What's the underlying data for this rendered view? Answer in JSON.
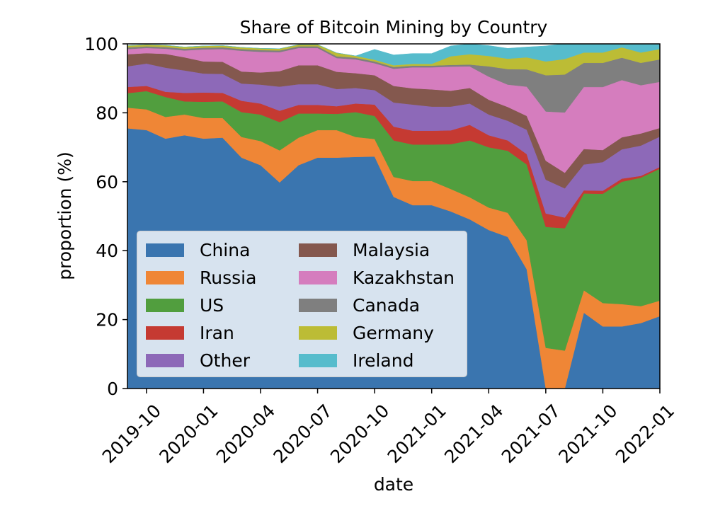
{
  "chart_data": {
    "type": "area",
    "stacked": true,
    "title": "Share of Bitcoin Mining by Country",
    "xlabel": "date",
    "ylabel": "proportion (%)",
    "ylim": [
      0,
      100
    ],
    "yticks": [
      0,
      20,
      40,
      60,
      80,
      100
    ],
    "xlim": [
      "2019-09",
      "2022-01"
    ],
    "xticks": [
      "2019-10",
      "2020-01",
      "2020-04",
      "2020-07",
      "2020-10",
      "2021-01",
      "2021-04",
      "2021-07",
      "2021-10",
      "2022-01"
    ],
    "grid": false,
    "legend_position": "lower-left",
    "legend_columns": 2,
    "x": [
      "2019-09",
      "2019-10",
      "2019-11",
      "2019-12",
      "2020-01",
      "2020-02",
      "2020-03",
      "2020-04",
      "2020-05",
      "2020-06",
      "2020-07",
      "2020-08",
      "2020-09",
      "2020-10",
      "2020-11",
      "2020-12",
      "2021-01",
      "2021-02",
      "2021-03",
      "2021-04",
      "2021-05",
      "2021-06",
      "2021-07",
      "2021-08",
      "2021-09",
      "2021-10",
      "2021-11",
      "2021-12",
      "2022-01"
    ],
    "series": [
      {
        "name": "China",
        "color": "#3a75af",
        "values": [
          75.5,
          75.0,
          72.5,
          73.5,
          72.5,
          72.8,
          67.0,
          64.8,
          59.8,
          64.8,
          67.0,
          67.0,
          67.2,
          67.3,
          55.6,
          53.2,
          53.2,
          51.4,
          49.1,
          46.0,
          44.0,
          34.6,
          0,
          0,
          22.0,
          18.0,
          18.0,
          19.0,
          21.0
        ]
      },
      {
        "name": "Russia",
        "color": "#ef8636",
        "values": [
          6.0,
          6.0,
          6.3,
          6.0,
          6.0,
          5.7,
          6.0,
          7.0,
          9.3,
          8.0,
          8.0,
          8.0,
          5.8,
          5.1,
          5.8,
          7.0,
          7.0,
          6.5,
          6.4,
          6.5,
          7.0,
          8.4,
          11.8,
          11.0,
          6.5,
          6.8,
          6.5,
          4.9,
          4.5
        ]
      },
      {
        "name": "US",
        "color": "#519e3e",
        "values": [
          4.2,
          5.3,
          5.8,
          3.8,
          4.7,
          4.8,
          7.2,
          7.7,
          8.2,
          7.0,
          4.8,
          4.7,
          7.2,
          6.7,
          10.6,
          10.6,
          10.6,
          13.0,
          16.5,
          17.5,
          18.0,
          22.0,
          35.1,
          35.5,
          28.1,
          31.7,
          35.5,
          37.3,
          38.3
        ]
      },
      {
        "name": "Iran",
        "color": "#c53a32",
        "values": [
          1.8,
          1.5,
          1.5,
          2.5,
          2.7,
          2.5,
          3.3,
          3.2,
          3.3,
          2.5,
          2.5,
          2.2,
          2.5,
          3.3,
          4.0,
          4.0,
          4.0,
          4.0,
          4.5,
          3.5,
          3.0,
          3.0,
          3.9,
          3.1,
          0.9,
          0.9,
          0.9,
          0.5,
          0.5
        ]
      },
      {
        "name": "Other",
        "color": "#8d69b8",
        "values": [
          6.0,
          6.5,
          7.0,
          6.5,
          5.5,
          5.5,
          5.0,
          5.5,
          7.0,
          6.0,
          6.0,
          5.0,
          4.5,
          4.2,
          7.0,
          7.6,
          7.0,
          6.9,
          6.2,
          6.0,
          5.7,
          7.1,
          9.8,
          8.5,
          7.5,
          8.3,
          8.5,
          8.8,
          8.8
        ]
      },
      {
        "name": "Malaysia",
        "color": "#84584e",
        "values": [
          3.5,
          3.0,
          4.0,
          3.8,
          3.5,
          3.5,
          3.5,
          3.5,
          4.5,
          5.5,
          5.5,
          5.0,
          4.3,
          4.3,
          4.8,
          4.7,
          5.0,
          4.6,
          4.5,
          4.3,
          4.0,
          4.0,
          5.5,
          4.5,
          4.5,
          3.5,
          3.5,
          3.5,
          2.5
        ]
      },
      {
        "name": "Kazakhstan",
        "color": "#d57dbe",
        "values": [
          1.5,
          1.5,
          1.5,
          2.0,
          3.5,
          3.7,
          6.0,
          6.0,
          5.5,
          5.0,
          5.0,
          4.0,
          4.0,
          3.5,
          5.0,
          6.1,
          6.4,
          7.0,
          6.3,
          6.7,
          6.5,
          8.5,
          14.3,
          17.5,
          18.0,
          18.3,
          16.6,
          14.0,
          13.4
        ]
      },
      {
        "name": "Canada",
        "color": "#7f7f7f",
        "values": [
          0.5,
          0.5,
          0.5,
          0.5,
          0.5,
          0.5,
          0.5,
          0.5,
          0.5,
          0.5,
          0.5,
          0.5,
          0.5,
          0.5,
          0.5,
          0.5,
          0.5,
          0.5,
          0.5,
          3.0,
          4.5,
          5.0,
          10.5,
          11.0,
          7.0,
          7.0,
          6.5,
          6.5,
          6.5
        ]
      },
      {
        "name": "Germany",
        "color": "#bcbc35",
        "values": [
          0.5,
          0.5,
          0.5,
          0.5,
          0.5,
          0.5,
          0.5,
          0.5,
          0.5,
          0.5,
          0.5,
          1.0,
          0.5,
          0.5,
          0.5,
          0.5,
          0.5,
          2.5,
          3.0,
          3.0,
          3.0,
          3.5,
          4.0,
          4.5,
          3.0,
          3.0,
          3.0,
          3.0,
          3.0
        ]
      },
      {
        "name": "Ireland",
        "color": "#56bccc",
        "values": [
          0.0,
          0.0,
          0.0,
          0.0,
          0.0,
          0.0,
          0.0,
          0.0,
          0.0,
          0.0,
          0.0,
          0.0,
          0.0,
          3.0,
          3.0,
          3.0,
          3.0,
          3.0,
          3.0,
          3.0,
          3.0,
          3.0,
          4.5,
          4.5,
          2.5,
          2.5,
          2.5,
          2.5,
          2.5
        ]
      }
    ]
  }
}
